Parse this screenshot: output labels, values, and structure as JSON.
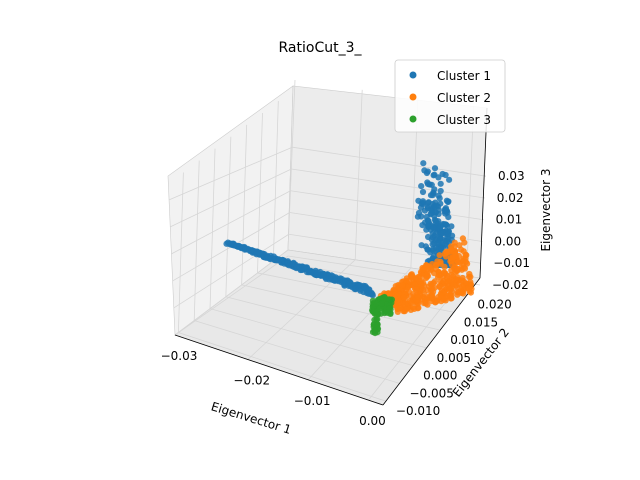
{
  "chart_data": {
    "type": "scatter",
    "projection": "3d",
    "title": "RatioCut_3_",
    "xlabel": "Eigenvector 1",
    "ylabel": "Eigenvector 2",
    "zlabel": "Eigenvector 3",
    "grid": true,
    "legend_position": "top-right",
    "xticks": [
      "−0.03",
      "−0.02",
      "−0.01",
      "0.00"
    ],
    "yticks": [
      "−0.010",
      "−0.005",
      "0.000",
      "0.005",
      "0.010",
      "0.015",
      "0.020"
    ],
    "zticks": [
      "−0.02",
      "−0.01",
      "0.00",
      "0.01",
      "0.02",
      "0.03"
    ],
    "series": [
      {
        "name": "Cluster 1",
        "color": "#1f77b4",
        "shape": "two arms: long thin arm along Eigenvector 1 at near-zero Eigenvector 2/3, plus a tall fan rising in Eigenvector 3",
        "approx_x_range": [
          -0.032,
          -0.001
        ],
        "approx_y_range": [
          -0.002,
          0.021
        ],
        "approx_z_range": [
          -0.012,
          0.031
        ]
      },
      {
        "name": "Cluster 2",
        "color": "#ff7f0e",
        "shape": "broad sheet at the positive Eigenvector 2 end",
        "approx_x_range": [
          -0.004,
          0.0
        ],
        "approx_y_range": [
          0.0,
          0.021
        ],
        "approx_z_range": [
          -0.021,
          0.002
        ]
      },
      {
        "name": "Cluster 3",
        "color": "#2ca02c",
        "shape": "small compact cluster near the junction of the arms",
        "approx_x_range": [
          -0.003,
          -0.001
        ],
        "approx_y_range": [
          -0.003,
          0.001
        ],
        "approx_z_range": [
          -0.019,
          -0.014
        ]
      }
    ]
  }
}
